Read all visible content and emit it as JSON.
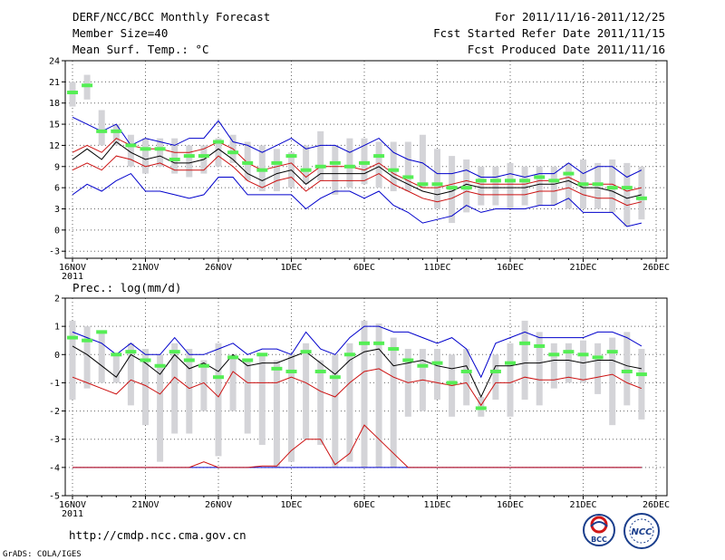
{
  "header": {
    "title": "DERF/NCC/BCC Monthly Forecast",
    "member_size": "Member Size=40",
    "variable": "Mean Surf. Temp.: °C",
    "period": "For 2011/11/16-2011/12/25",
    "started": "Fcst Started Refer Date 2011/11/15",
    "produced": "Fcst Produced Date 2011/11/16"
  },
  "footer": {
    "url": "http://cmdp.ncc.cma.gov.cn",
    "credit": "GrADS: COLA/IGES",
    "logo_bcc": "BCC",
    "logo_ncc": "NCC"
  },
  "colors": {
    "frame": "#000000",
    "grid": "#666666",
    "box": "#d4d4d8",
    "median": "#55ee55",
    "mean": "#000000",
    "band": "#cc1111",
    "extreme": "#0000cc"
  },
  "chart_data": [
    {
      "type": "line",
      "title": "Mean Surf. Temp.: °C",
      "ylim": [
        -4,
        24
      ],
      "yticks": [
        "24",
        "21",
        "18",
        "15",
        "12",
        "9",
        "6",
        "3",
        "0",
        "-3"
      ],
      "xlim": [
        0,
        40
      ],
      "xtick_positions": [
        0,
        5,
        10,
        15,
        20,
        25,
        30,
        35,
        40
      ],
      "xticks": [
        "16NOV",
        "21NOV",
        "26NOV",
        "1DEC",
        "6DEC",
        "11DEC",
        "16DEC",
        "21DEC",
        "26DEC"
      ],
      "year_label": "2011",
      "grid": true,
      "series": [
        {
          "name": "box_top",
          "values": [
            21.0,
            22.0,
            17.0,
            15.0,
            13.5,
            13.0,
            13.0,
            13.0,
            12.0,
            12.0,
            13.0,
            13.5,
            12.5,
            12.0,
            11.5,
            11.0,
            12.0,
            14.0,
            12.0,
            13.0,
            13.0,
            12.5,
            12.5,
            12.5,
            13.5,
            11.5,
            10.5,
            10.0,
            9.0,
            9.0,
            9.5,
            9.0,
            9.0,
            9.0,
            9.5,
            10.0,
            9.5,
            10.0,
            9.5,
            9.0
          ]
        },
        {
          "name": "box_bottom",
          "values": [
            17.5,
            18.5,
            12.0,
            12.0,
            9.0,
            8.0,
            9.0,
            8.0,
            7.5,
            8.0,
            9.0,
            9.5,
            7.0,
            5.5,
            5.5,
            6.0,
            6.5,
            7.0,
            5.0,
            6.0,
            6.5,
            6.0,
            5.5,
            5.5,
            6.0,
            3.0,
            1.0,
            2.5,
            3.5,
            3.5,
            3.0,
            3.5,
            3.5,
            3.5,
            3.0,
            3.0,
            3.0,
            2.5,
            0.5,
            1.5
          ]
        },
        {
          "name": "median",
          "values": [
            19.5,
            20.5,
            14.0,
            14.0,
            12.0,
            11.5,
            11.5,
            10.0,
            10.5,
            10.5,
            12.5,
            11.0,
            9.5,
            8.5,
            9.5,
            10.5,
            8.5,
            9.0,
            9.5,
            9.0,
            9.5,
            10.5,
            8.5,
            7.5,
            6.5,
            6.5,
            6.0,
            6.0,
            7.0,
            7.0,
            7.0,
            7.0,
            7.5,
            7.0,
            8.0,
            6.5,
            6.5,
            6.0,
            6.0,
            4.5
          ]
        },
        {
          "name": "mean",
          "values": [
            10.0,
            11.5,
            10.0,
            12.5,
            11.0,
            10.0,
            10.5,
            9.5,
            9.5,
            10.0,
            11.5,
            10.0,
            8.0,
            7.0,
            8.0,
            8.5,
            6.5,
            8.0,
            8.0,
            8.0,
            8.0,
            9.0,
            7.5,
            6.5,
            5.5,
            5.0,
            5.5,
            6.5,
            6.0,
            6.0,
            6.0,
            6.0,
            6.5,
            6.5,
            7.0,
            6.0,
            6.0,
            5.5,
            4.5,
            5.0
          ]
        },
        {
          "name": "upper",
          "values": [
            11.0,
            12.0,
            11.0,
            13.0,
            12.0,
            11.5,
            11.5,
            11.0,
            11.0,
            11.5,
            12.5,
            11.5,
            9.5,
            8.5,
            9.0,
            9.5,
            7.5,
            9.0,
            9.0,
            9.0,
            8.5,
            9.5,
            8.0,
            7.0,
            6.0,
            6.0,
            6.5,
            7.0,
            6.5,
            6.5,
            6.5,
            6.5,
            7.0,
            7.0,
            7.5,
            6.5,
            6.5,
            6.5,
            5.5,
            6.0
          ]
        },
        {
          "name": "lower",
          "values": [
            8.5,
            9.5,
            8.5,
            10.5,
            10.0,
            9.0,
            9.5,
            8.5,
            8.5,
            8.5,
            10.5,
            9.0,
            7.0,
            6.0,
            7.0,
            7.5,
            5.5,
            7.0,
            7.0,
            7.0,
            7.0,
            8.0,
            6.5,
            5.5,
            4.5,
            4.0,
            4.5,
            5.5,
            5.0,
            5.0,
            5.0,
            5.0,
            5.5,
            5.5,
            6.0,
            5.0,
            4.5,
            4.5,
            3.5,
            4.0
          ]
        },
        {
          "name": "max",
          "values": [
            16.0,
            15.0,
            14.0,
            15.0,
            12.0,
            13.0,
            12.5,
            12.0,
            13.0,
            13.0,
            15.5,
            12.5,
            12.0,
            11.0,
            12.0,
            13.0,
            11.5,
            12.0,
            12.0,
            11.0,
            12.0,
            13.0,
            11.0,
            10.0,
            9.5,
            8.0,
            8.0,
            8.5,
            7.5,
            7.5,
            8.0,
            7.5,
            8.0,
            8.0,
            9.5,
            8.0,
            9.0,
            9.0,
            7.5,
            8.5
          ]
        },
        {
          "name": "min",
          "values": [
            5.0,
            6.5,
            5.5,
            7.0,
            8.0,
            5.5,
            5.5,
            5.0,
            4.5,
            5.0,
            7.5,
            7.5,
            5.0,
            5.0,
            5.0,
            5.0,
            3.0,
            4.5,
            5.5,
            5.5,
            4.5,
            5.5,
            3.5,
            2.5,
            1.0,
            1.5,
            2.0,
            3.5,
            2.5,
            3.0,
            3.0,
            3.0,
            3.5,
            3.5,
            4.5,
            2.5,
            2.5,
            2.5,
            0.5,
            1.0
          ]
        }
      ]
    },
    {
      "type": "line",
      "title": "Prec.: log(mm/d)",
      "ylim": [
        -5,
        2
      ],
      "yticks": [
        "2",
        "1",
        "0",
        "-1",
        "-2",
        "-3",
        "-4",
        "-5"
      ],
      "xlim": [
        0,
        40
      ],
      "xtick_positions": [
        0,
        5,
        10,
        15,
        20,
        25,
        30,
        35,
        40
      ],
      "xticks": [
        "16NOV",
        "21NOV",
        "26NOV",
        "1DEC",
        "6DEC",
        "11DEC",
        "16DEC",
        "21DEC",
        "26DEC"
      ],
      "year_label": "2011",
      "grid": true,
      "series": [
        {
          "name": "box_top",
          "values": [
            1.2,
            1.0,
            0.8,
            0.0,
            0.4,
            0.2,
            0.0,
            0.4,
            0.2,
            -0.2,
            0.4,
            0.0,
            -0.2,
            0.0,
            -0.2,
            0.0,
            0.4,
            -0.2,
            0.0,
            0.4,
            1.2,
            1.1,
            0.6,
            0.2,
            0.2,
            0.2,
            0.0,
            0.2,
            -1.5,
            0.0,
            0.4,
            1.2,
            0.8,
            0.4,
            0.4,
            0.5,
            0.4,
            0.6,
            0.8,
            0.2
          ]
        },
        {
          "name": "box_bottom",
          "values": [
            -1.6,
            -1.2,
            -1.0,
            -1.0,
            -1.8,
            -2.5,
            -3.8,
            -2.8,
            -2.8,
            -2.0,
            -3.6,
            -2.0,
            -2.8,
            -3.2,
            -4.0,
            -3.8,
            -3.0,
            -3.2,
            -4.0,
            -3.8,
            -4.0,
            -4.0,
            -4.0,
            -2.2,
            -2.0,
            -1.6,
            -2.2,
            -1.8,
            -2.2,
            -1.6,
            -2.2,
            -1.6,
            -1.8,
            -1.2,
            -1.0,
            -1.0,
            -1.4,
            -2.5,
            -1.8,
            -2.3
          ]
        },
        {
          "name": "median",
          "values": [
            0.6,
            0.5,
            0.8,
            0.0,
            0.1,
            -0.2,
            -0.4,
            0.1,
            -0.2,
            -0.4,
            -0.8,
            -0.1,
            -0.2,
            0.0,
            -0.5,
            -0.6,
            0.1,
            -0.6,
            -0.8,
            0.0,
            0.4,
            0.4,
            0.2,
            -0.2,
            -0.4,
            -0.3,
            -1.0,
            -0.6,
            -1.9,
            -0.6,
            -0.3,
            0.4,
            0.3,
            0.0,
            0.1,
            0.0,
            -0.1,
            0.1,
            -0.6,
            -0.7
          ]
        },
        {
          "name": "mean",
          "values": [
            0.3,
            0.0,
            -0.4,
            -0.8,
            0.0,
            -0.3,
            -0.7,
            0.0,
            -0.5,
            -0.3,
            -0.6,
            0.0,
            -0.4,
            -0.3,
            -0.3,
            -0.1,
            0.1,
            -0.3,
            -0.7,
            -0.2,
            0.1,
            0.2,
            -0.4,
            -0.3,
            -0.2,
            -0.4,
            -0.5,
            -0.4,
            -1.5,
            -0.4,
            -0.4,
            -0.3,
            -0.3,
            -0.2,
            -0.2,
            -0.3,
            -0.2,
            -0.2,
            -0.4,
            -0.5
          ]
        },
        {
          "name": "upper",
          "values": [
            -0.8,
            -1.0,
            -1.2,
            -1.4,
            -0.9,
            -1.1,
            -1.4,
            -0.8,
            -1.2,
            -1.0,
            -1.5,
            -0.6,
            -1.0,
            -1.0,
            -1.0,
            -0.8,
            -1.0,
            -1.3,
            -1.5,
            -1.0,
            -0.6,
            -0.5,
            -0.8,
            -1.0,
            -0.9,
            -1.0,
            -1.1,
            -1.0,
            -1.8,
            -1.0,
            -1.0,
            -0.8,
            -0.9,
            -0.9,
            -0.8,
            -0.9,
            -0.8,
            -0.7,
            -1.0,
            -1.2
          ]
        },
        {
          "name": "max",
          "values": [
            0.8,
            0.6,
            0.4,
            0.0,
            0.4,
            0.0,
            0.0,
            0.6,
            0.0,
            0.0,
            0.2,
            0.4,
            0.0,
            0.2,
            0.2,
            0.0,
            0.8,
            0.2,
            0.0,
            0.6,
            1.0,
            1.0,
            0.8,
            0.8,
            0.6,
            0.4,
            0.6,
            0.2,
            -0.8,
            0.4,
            0.6,
            0.8,
            0.6,
            0.6,
            0.6,
            0.6,
            0.8,
            0.8,
            0.6,
            0.3
          ]
        },
        {
          "name": "min",
          "values": [
            -4.0,
            -4.0,
            -4.0,
            -4.0,
            -4.0,
            -4.0,
            -4.0,
            -4.0,
            -4.0,
            -4.0,
            -4.0,
            -4.0,
            -4.0,
            -4.0,
            -4.0,
            -4.0,
            -4.0,
            -4.0,
            -4.0,
            -4.0,
            -4.0,
            -4.0,
            -4.0,
            -4.0,
            -4.0,
            -4.0,
            -4.0,
            -4.0,
            -4.0,
            -4.0,
            -4.0,
            -4.0,
            -4.0,
            -4.0,
            -4.0,
            -4.0,
            -4.0,
            -4.0,
            -4.0,
            -4.0
          ]
        },
        {
          "name": "lower",
          "values": [
            -4.0,
            -4.0,
            -4.0,
            -4.0,
            -4.0,
            -4.0,
            -4.0,
            -4.0,
            -4.0,
            -3.8,
            -4.0,
            -4.0,
            -4.0,
            -3.95,
            -3.95,
            -3.4,
            -3.0,
            -3.0,
            -3.9,
            -3.5,
            -2.5,
            -3.0,
            -3.5,
            -4.0,
            -4.0,
            -4.0,
            -4.0,
            -4.0,
            -4.0,
            -4.0,
            -4.0,
            -4.0,
            -4.0,
            -4.0,
            -4.0,
            -4.0,
            -4.0,
            -4.0,
            -4.0,
            -4.0
          ]
        }
      ]
    }
  ]
}
